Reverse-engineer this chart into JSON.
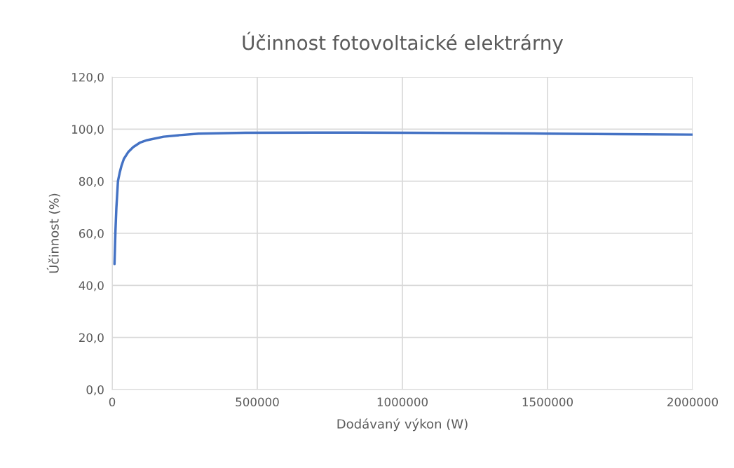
{
  "chart_data": {
    "type": "line",
    "title": "Účinnost fotovoltaické elektrárny",
    "xlabel": "Dodávaný výkon (W)",
    "ylabel": "Účinnost (%)",
    "x": [
      8000,
      11300,
      14500,
      20000,
      25800,
      32000,
      40300,
      56000,
      72400,
      97000,
      121000,
      177000,
      233000,
      298000,
      459000,
      700000,
      1000000,
      1250000,
      1500000,
      1750000,
      2000000
    ],
    "series": [
      {
        "color": "#4472c4",
        "values": [
          48.2,
          60.8,
          69.8,
          80.1,
          83.2,
          85.9,
          88.6,
          91.3,
          93.1,
          94.9,
          95.8,
          97.1,
          97.7,
          98.3,
          98.6,
          98.7,
          98.6,
          98.5,
          98.3,
          98.1,
          97.9
        ]
      }
    ],
    "xlim": [
      0,
      2000000
    ],
    "xticks": [
      0,
      500000,
      1000000,
      1500000,
      2000000
    ],
    "ylim": [
      0,
      120
    ],
    "yticks": [
      {
        "value": 0,
        "label": "0,0"
      },
      {
        "value": 20,
        "label": "20,0"
      },
      {
        "value": 40,
        "label": "40,0"
      },
      {
        "value": 60,
        "label": "60,0"
      },
      {
        "value": 80,
        "label": "80,0"
      },
      {
        "value": 100,
        "label": "100,0"
      },
      {
        "value": 120,
        "label": "120,0"
      }
    ],
    "grid": true,
    "marker": "none",
    "line_style": "solid"
  }
}
